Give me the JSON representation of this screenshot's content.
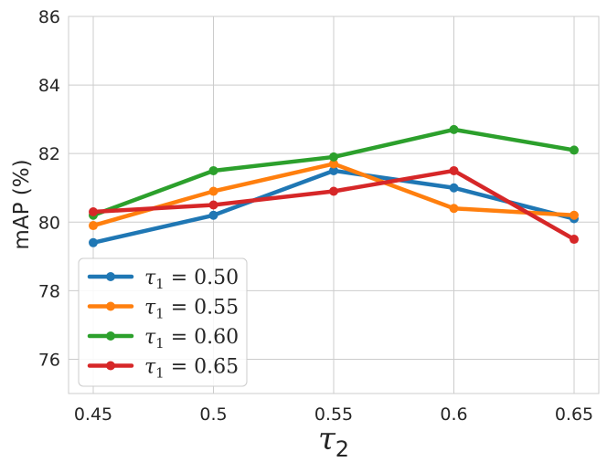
{
  "chart_data": {
    "type": "line",
    "xlabel": "τ2",
    "ylabel": "mAP (%)",
    "x": [
      0.45,
      0.5,
      0.55,
      0.6,
      0.65
    ],
    "xticks": [
      "0.45",
      "0.5",
      "0.55",
      "0.6",
      "0.65"
    ],
    "ylim": [
      75,
      86
    ],
    "yticks": [
      76,
      78,
      80,
      82,
      84,
      86
    ],
    "grid": true,
    "legend_position": "lower-left",
    "series": [
      {
        "name": "τ1 = 0.50",
        "color": "#1f77b4",
        "values": [
          79.4,
          80.2,
          81.5,
          81.0,
          80.1
        ]
      },
      {
        "name": "τ1 = 0.55",
        "color": "#ff7f0e",
        "values": [
          79.9,
          80.9,
          81.7,
          80.4,
          80.2
        ]
      },
      {
        "name": "τ1 = 0.60",
        "color": "#2ca02c",
        "values": [
          80.2,
          81.5,
          81.9,
          82.7,
          82.1
        ]
      },
      {
        "name": "τ1 = 0.65",
        "color": "#d62728",
        "values": [
          80.3,
          80.5,
          80.9,
          81.5,
          79.5
        ]
      }
    ]
  }
}
